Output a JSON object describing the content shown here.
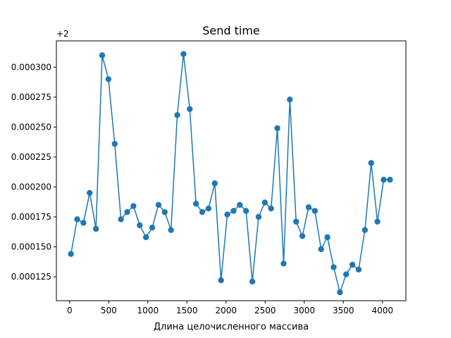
{
  "chart_data": {
    "type": "line",
    "title": "Send time",
    "xlabel": "Длина целочисленного массива",
    "ylabel": "",
    "offset_label": "+2",
    "xlim": [
      -170,
      4300
    ],
    "ylim": [
      0.000105,
      0.000322
    ],
    "xticks": [
      0,
      500,
      1000,
      1500,
      2000,
      2500,
      3000,
      3500,
      4000
    ],
    "xtick_labels": [
      "0",
      "500",
      "1000",
      "1500",
      "2000",
      "2500",
      "3000",
      "3500",
      "4000"
    ],
    "yticks": [
      0.000125,
      0.00015,
      0.000175,
      0.0002,
      0.000225,
      0.00025,
      0.000275,
      0.0003
    ],
    "ytick_labels": [
      "0.000125",
      "0.000150",
      "0.000175",
      "0.000200",
      "0.000225",
      "0.000250",
      "0.000275",
      "0.000300"
    ],
    "grid": false,
    "color": "#1f77b4",
    "series": [
      {
        "x": [
          16,
          96,
          176,
          256,
          336,
          416,
          496,
          576,
          656,
          736,
          816,
          896,
          976,
          1056,
          1136,
          1216,
          1296,
          1376,
          1456,
          1536,
          1616,
          1696,
          1776,
          1856,
          1936,
          2016,
          2096,
          2176,
          2256,
          2336,
          2416,
          2496,
          2576,
          2656,
          2736,
          2816,
          2896,
          2976,
          3056,
          3136,
          3216,
          3296,
          3376,
          3456,
          3536,
          3616,
          3696,
          3776,
          3856,
          3936,
          4016,
          4096
        ],
        "y": [
          0.000144,
          0.000173,
          0.00017,
          0.000195,
          0.000165,
          0.00031,
          0.00029,
          0.000236,
          0.000173,
          0.000179,
          0.000184,
          0.000168,
          0.000158,
          0.000166,
          0.000185,
          0.000179,
          0.000164,
          0.00026,
          0.000311,
          0.000265,
          0.000186,
          0.000179,
          0.000182,
          0.000203,
          0.000122,
          0.000177,
          0.00018,
          0.000185,
          0.00018,
          0.000121,
          0.000175,
          0.000187,
          0.000182,
          0.000249,
          0.000136,
          0.000273,
          0.000171,
          0.000159,
          0.000183,
          0.00018,
          0.000148,
          0.000158,
          0.000133,
          0.000112,
          0.000127,
          0.000135,
          0.000131,
          0.000164,
          0.00022,
          0.000171,
          0.000206,
          0.000206
        ]
      }
    ]
  }
}
